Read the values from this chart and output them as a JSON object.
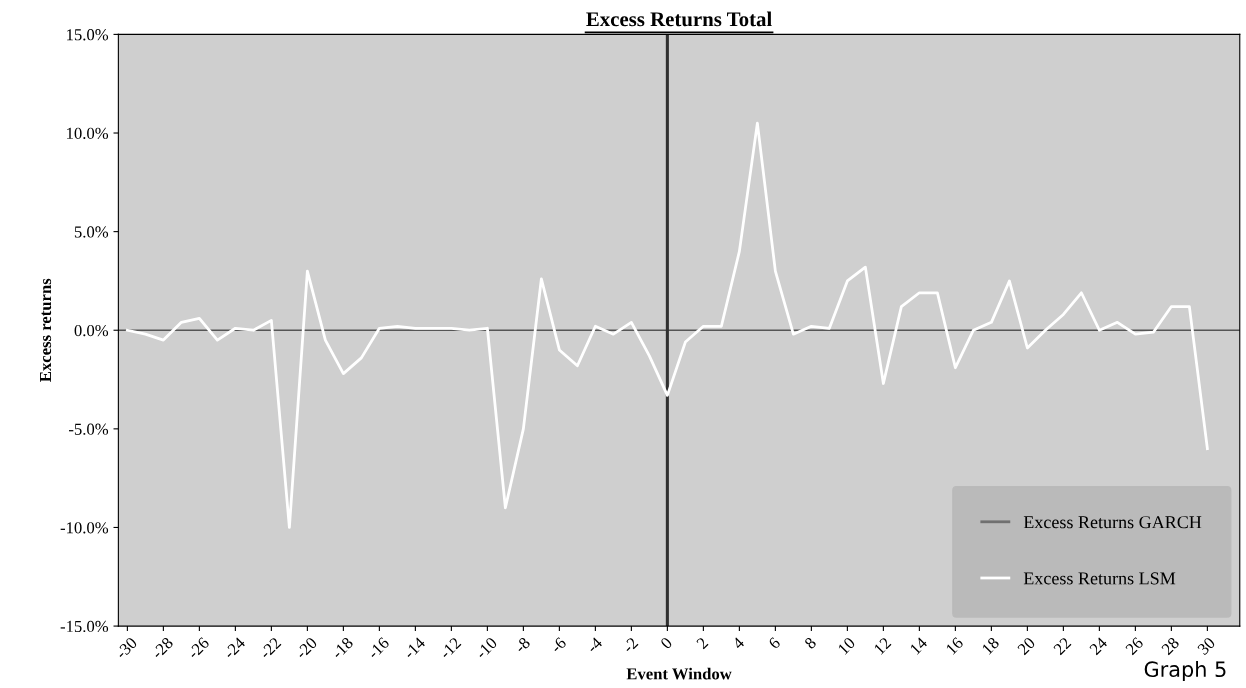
{
  "chart_data": {
    "type": "line",
    "title": "Excess Returns Total",
    "xlabel": "Event Window",
    "ylabel": "Excess returns",
    "x": [
      -30,
      -29,
      -28,
      -27,
      -26,
      -25,
      -24,
      -23,
      -22,
      -21,
      -20,
      -19,
      -18,
      -17,
      -16,
      -15,
      -14,
      -13,
      -12,
      -11,
      -10,
      -9,
      -8,
      -7,
      -6,
      -5,
      -4,
      -3,
      -2,
      -1,
      0,
      1,
      2,
      3,
      4,
      5,
      6,
      7,
      8,
      9,
      10,
      11,
      12,
      13,
      14,
      15,
      16,
      17,
      18,
      19,
      20,
      21,
      22,
      23,
      24,
      25,
      26,
      27,
      28,
      29,
      30
    ],
    "series": [
      {
        "name": "Excess Returns GARCH",
        "color": "#707070",
        "values": [
          null,
          null,
          null,
          null,
          null,
          null,
          null,
          null,
          null,
          null,
          null,
          null,
          null,
          null,
          null,
          null,
          null,
          null,
          null,
          null,
          null,
          null,
          null,
          null,
          null,
          null,
          null,
          null,
          null,
          null,
          null,
          null,
          null,
          null,
          null,
          null,
          null,
          null,
          null,
          null,
          null,
          null,
          null,
          null,
          null,
          null,
          null,
          null,
          null,
          null,
          null,
          null,
          null,
          null,
          null,
          null,
          null,
          null,
          null,
          null,
          null
        ]
      },
      {
        "name": "Excess Returns LSM",
        "color": "#ffffff",
        "values": [
          0.0,
          -0.2,
          -0.5,
          0.4,
          0.6,
          -0.5,
          0.1,
          0.0,
          0.5,
          -10.0,
          3.0,
          -0.5,
          -2.2,
          -1.4,
          0.1,
          0.2,
          0.1,
          0.1,
          0.1,
          0.0,
          0.1,
          -9.0,
          -5.0,
          2.6,
          -1.0,
          -1.8,
          0.2,
          -0.2,
          0.4,
          -1.3,
          -3.3,
          -0.6,
          0.2,
          0.2,
          4.0,
          10.5,
          3.0,
          -0.2,
          0.2,
          0.1,
          2.5,
          3.2,
          -2.7,
          1.2,
          1.9,
          1.9,
          -1.9,
          0.0,
          0.4,
          2.5,
          -0.9,
          0.0,
          0.8,
          1.9,
          0.0,
          0.4,
          -0.2,
          -0.1,
          1.2,
          1.2,
          -6.0
        ]
      }
    ],
    "xlim": [
      -30.5,
      31.8
    ],
    "xticks": [
      -30,
      -28,
      -26,
      -24,
      -22,
      -20,
      -18,
      -16,
      -14,
      -12,
      -10,
      -8,
      -6,
      -4,
      -2,
      0,
      2,
      4,
      6,
      8,
      10,
      12,
      14,
      16,
      18,
      20,
      22,
      24,
      26,
      28,
      30
    ],
    "ylim": [
      -15,
      15
    ],
    "yticks": [
      {
        "value": -15,
        "label": "-15.0%"
      },
      {
        "value": -10,
        "label": "-10.0%"
      },
      {
        "value": -5,
        "label": "-5.0%"
      },
      {
        "value": 0,
        "label": "0.0%"
      },
      {
        "value": 5,
        "label": "5.0%"
      },
      {
        "value": 10,
        "label": "10.0%"
      },
      {
        "value": 15,
        "label": "15.0%"
      }
    ],
    "ref_lines": [
      {
        "axis": "y",
        "value": 0,
        "color": "#555555"
      },
      {
        "axis": "x",
        "value": 0,
        "color": "#303030"
      }
    ],
    "grid": false,
    "legend": "bottom right",
    "marker": "none",
    "line_style": "solid",
    "annotations": [
      "Graph 5"
    ]
  }
}
